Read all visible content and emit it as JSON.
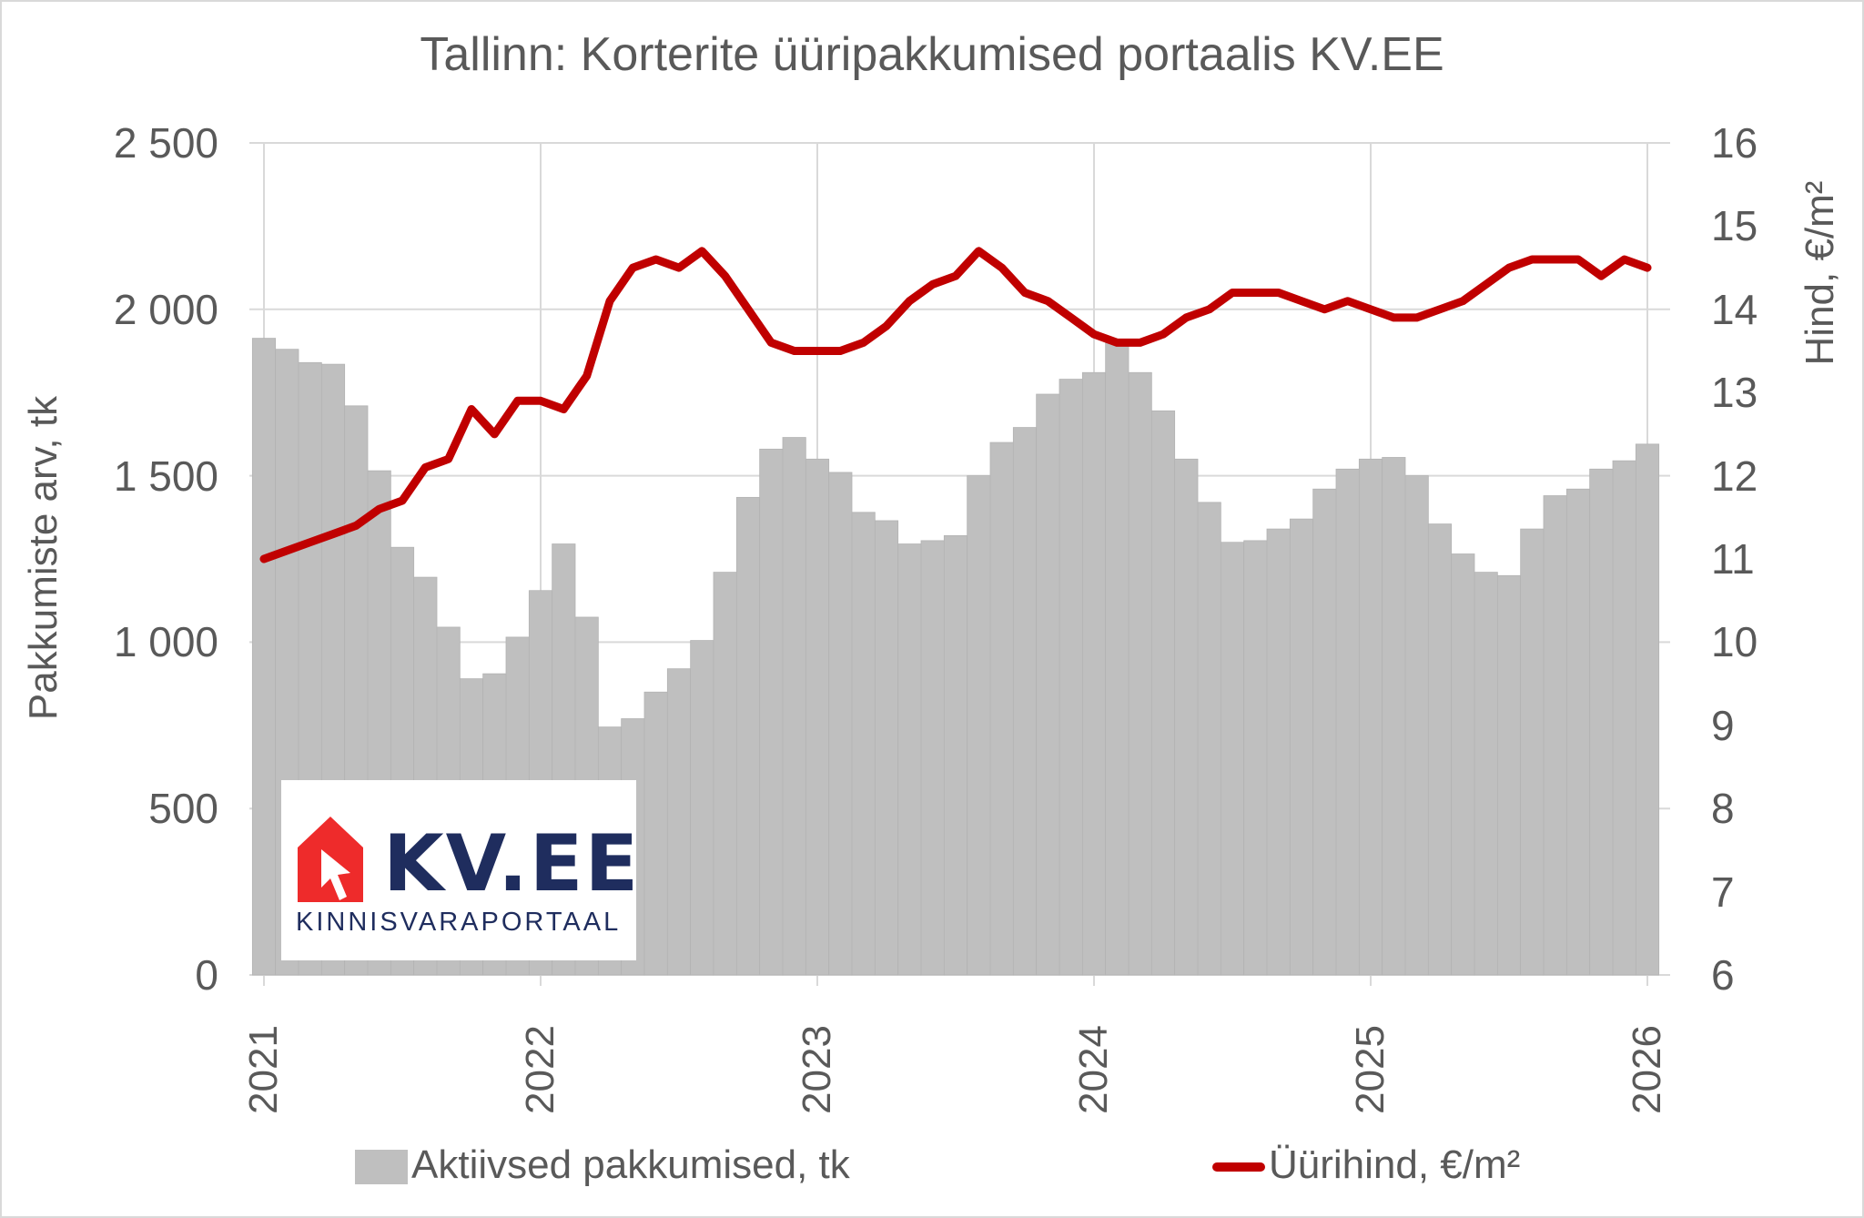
{
  "chart_data": {
    "type": "bar+line",
    "title": "Tallinn: Korterite üüripakkumised portaalis KV.EE",
    "ylabel": "Pakkumiste arv, tk",
    "y2label": "Hind, €/m²",
    "ylim": [
      0,
      2500
    ],
    "y2lim": [
      6,
      16
    ],
    "yticks": [
      "0",
      "500",
      "1 000",
      "1 500",
      "2 000",
      "2 500"
    ],
    "y2ticks": [
      "6",
      "7",
      "8",
      "9",
      "10",
      "11",
      "12",
      "13",
      "14",
      "15",
      "16"
    ],
    "xticks": [
      "2021",
      "2022",
      "2023",
      "2024",
      "2025",
      "2026"
    ],
    "grid": true,
    "legend_position": "bottom",
    "x": [
      "2021-01",
      "2021-02",
      "2021-03",
      "2021-04",
      "2021-05",
      "2021-06",
      "2021-07",
      "2021-08",
      "2021-09",
      "2021-10",
      "2021-11",
      "2021-12",
      "2022-01",
      "2022-02",
      "2022-03",
      "2022-04",
      "2022-05",
      "2022-06",
      "2022-07",
      "2022-08",
      "2022-09",
      "2022-10",
      "2022-11",
      "2022-12",
      "2023-01",
      "2023-02",
      "2023-03",
      "2023-04",
      "2023-05",
      "2023-06",
      "2023-07",
      "2023-08",
      "2023-09",
      "2023-10",
      "2023-11",
      "2023-12",
      "2024-01",
      "2024-02",
      "2024-03",
      "2024-04",
      "2024-05",
      "2024-06",
      "2024-07",
      "2024-08",
      "2024-09",
      "2024-10",
      "2024-11",
      "2024-12",
      "2025-01",
      "2025-02",
      "2025-03",
      "2025-04",
      "2025-05",
      "2025-06",
      "2025-07",
      "2025-08",
      "2025-09",
      "2025-10",
      "2025-11",
      "2025-12",
      "2026-01"
    ],
    "series": [
      {
        "name": "Aktiivsed pakkumised, tk",
        "type": "bar",
        "axis": "left",
        "color": "#bfbfbf",
        "values": [
          1913,
          1880,
          1840,
          1835,
          1710,
          1515,
          1285,
          1195,
          1045,
          890,
          905,
          1015,
          1155,
          1295,
          1075,
          745,
          770,
          850,
          920,
          1005,
          1210,
          1435,
          1580,
          1615,
          1550,
          1510,
          1390,
          1365,
          1295,
          1305,
          1320,
          1500,
          1600,
          1645,
          1745,
          1790,
          1810,
          1900,
          1810,
          1695,
          1550,
          1420,
          1300,
          1305,
          1340,
          1370,
          1460,
          1520,
          1550,
          1555,
          1500,
          1355,
          1265,
          1210,
          1200,
          1340,
          1440,
          1460,
          1520,
          1545,
          1595
        ]
      },
      {
        "name": "Üürihind, €/m²",
        "type": "line",
        "axis": "right",
        "color": "#c00000",
        "values": [
          11.0,
          11.1,
          11.2,
          11.3,
          11.4,
          11.6,
          11.7,
          12.1,
          12.2,
          12.8,
          12.5,
          12.9,
          12.9,
          12.8,
          13.2,
          14.1,
          14.5,
          14.6,
          14.5,
          14.7,
          14.4,
          14.0,
          13.6,
          13.5,
          13.5,
          13.5,
          13.6,
          13.8,
          14.1,
          14.3,
          14.4,
          14.7,
          14.5,
          14.2,
          14.1,
          13.9,
          13.7,
          13.6,
          13.6,
          13.7,
          13.9,
          14.0,
          14.2,
          14.2,
          14.2,
          14.1,
          14.0,
          14.1,
          14.0,
          13.9,
          13.9,
          14.0,
          14.1,
          14.3,
          14.5,
          14.6,
          14.6,
          14.6,
          14.4,
          14.6,
          14.5
        ]
      }
    ]
  },
  "logo": {
    "brand": "KV.EE",
    "tagline": "KINNISVARAPORTAAL",
    "house_color": "#ee2b2b",
    "text_color": "#1f2d5e"
  },
  "legend": {
    "bars_label": "Aktiivsed pakkumised, tk",
    "line_label": "Üürihind, €/m²"
  }
}
